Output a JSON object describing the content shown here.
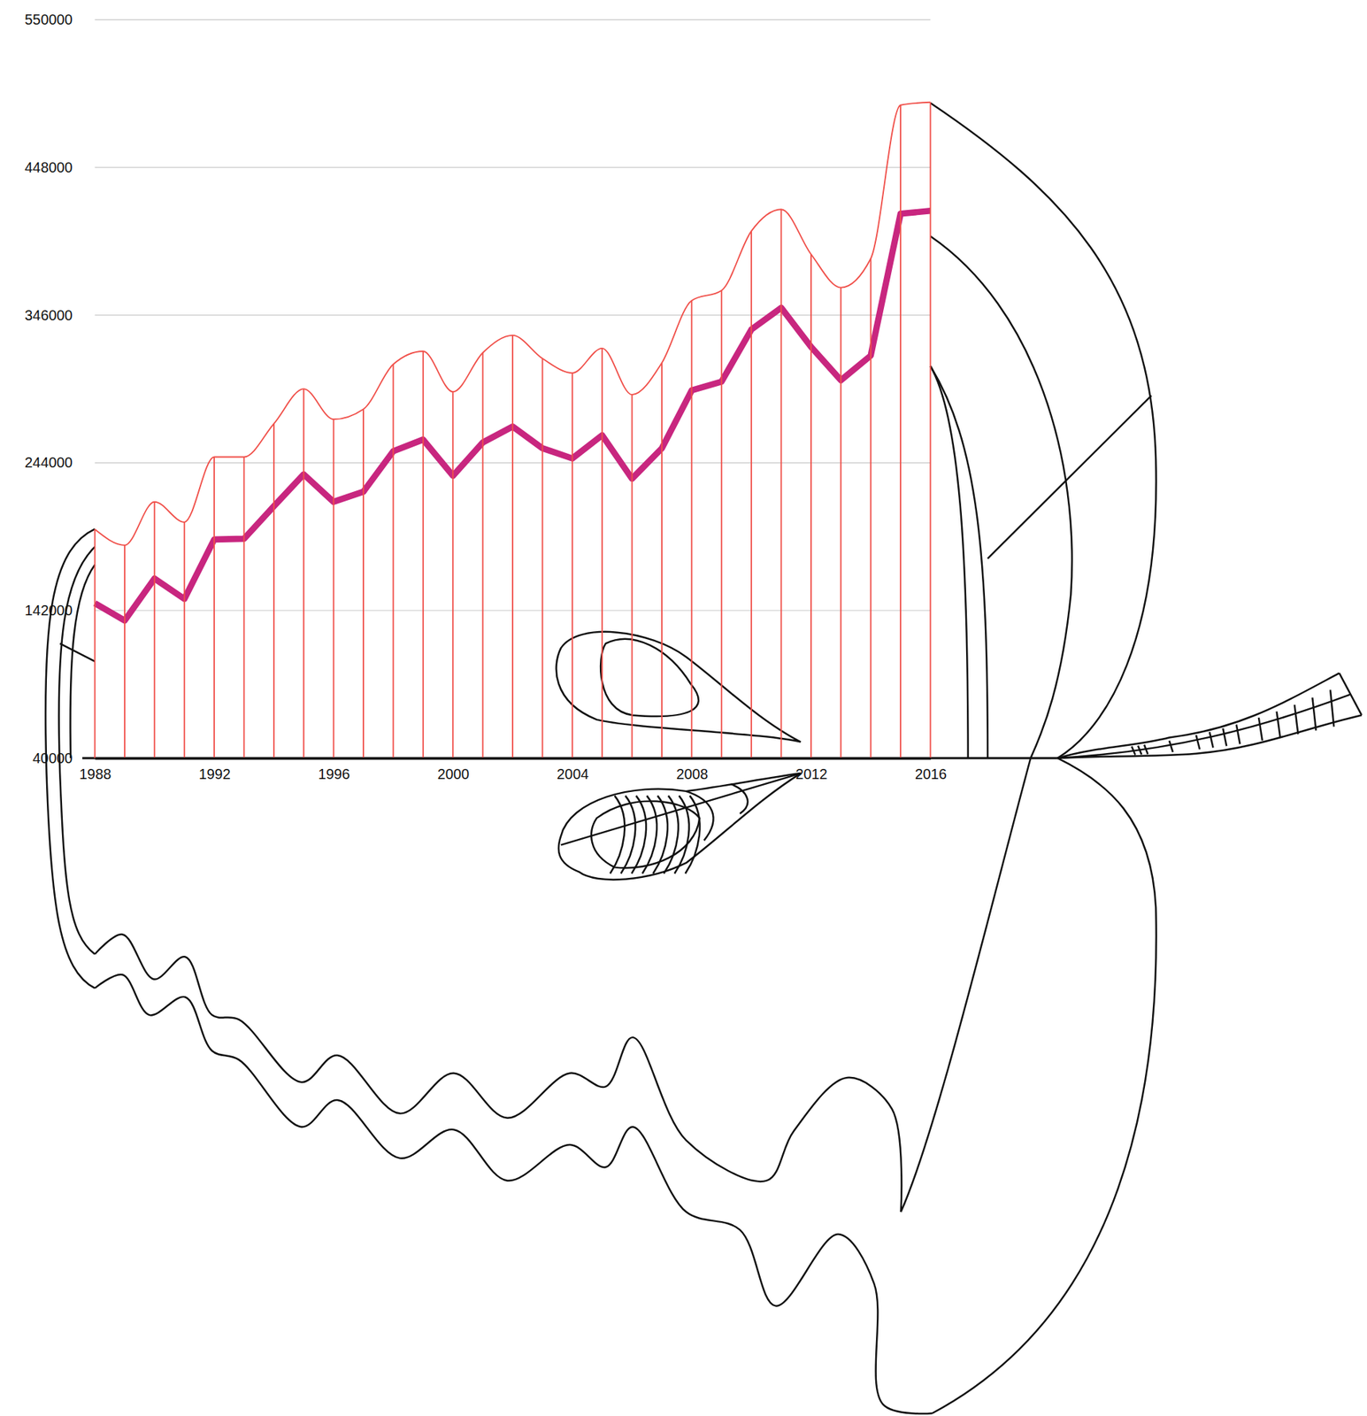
{
  "chart_data": {
    "type": "line",
    "x": [
      1988,
      1989,
      1990,
      1991,
      1992,
      1993,
      1994,
      1995,
      1996,
      1997,
      1998,
      1999,
      2000,
      2001,
      2002,
      2003,
      2004,
      2005,
      2006,
      2007,
      2008,
      2009,
      2010,
      2011,
      2012,
      2013,
      2014,
      2015,
      2016
    ],
    "series": [
      {
        "type": "line",
        "color": "#c8267f",
        "values": [
          147000,
          135000,
          164000,
          150000,
          191000,
          191500,
          214000,
          236000,
          217000,
          224000,
          252000,
          260000,
          235000,
          258000,
          269000,
          254000,
          247000,
          263000,
          233000,
          254000,
          294000,
          300000,
          336000,
          351000,
          324000,
          301000,
          318000,
          416000,
          418000
        ]
      },
      {
        "type": "stem",
        "color": "#f0504a",
        "values": [
          198000,
          187000,
          217000,
          203000,
          248000,
          248000,
          271000,
          295000,
          274000,
          281000,
          312000,
          321000,
          293000,
          320000,
          332000,
          316000,
          306000,
          323000,
          291000,
          313000,
          356000,
          363000,
          404000,
          419000,
          388000,
          365000,
          385000,
          491000,
          493000
        ]
      }
    ],
    "xlim": [
      1988,
      2016
    ],
    "xticks": [
      1988,
      1992,
      1996,
      2000,
      2004,
      2008,
      2012,
      2016
    ],
    "ylim": [
      40000,
      550000
    ],
    "yticks": [
      40000,
      142000,
      244000,
      346000,
      448000,
      550000
    ],
    "grid": true
  }
}
